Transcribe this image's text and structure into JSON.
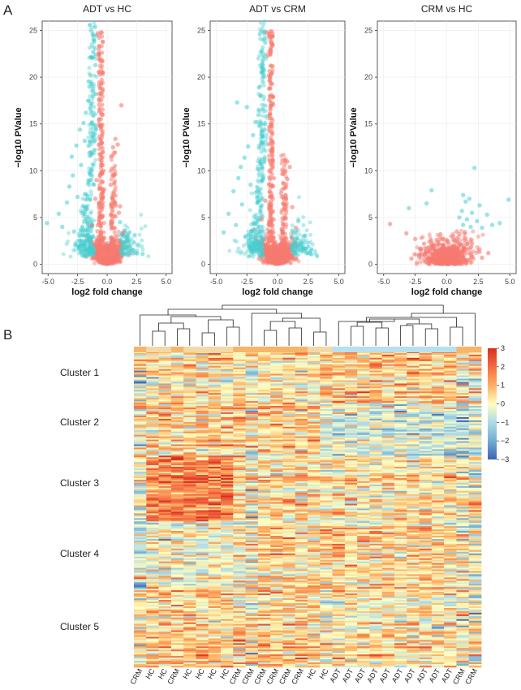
{
  "panel_a_label": "A",
  "panel_b_label": "B",
  "chart_data": [
    {
      "type": "scatter",
      "title": "ADT vs HC",
      "xlabel": "log2 fold change",
      "ylabel": "−log10 PValue",
      "xlim": [
        -5.5,
        5.5
      ],
      "ylim": [
        -1,
        26
      ],
      "xticks": [
        -5.0,
        -2.5,
        0.0,
        2.5,
        5.0
      ],
      "yticks": [
        0,
        5,
        10,
        15,
        20,
        25
      ],
      "grid": true,
      "series": [
        {
          "color": "#48cdd0",
          "values": [
            [
              -1.2,
              24.6
            ],
            [
              -1.1,
              23.8
            ],
            [
              -1.3,
              22.1
            ],
            [
              -1.0,
              21.3
            ],
            [
              -1.4,
              20.2
            ],
            [
              -1.5,
              19.0
            ],
            [
              -1.6,
              17.5
            ],
            [
              -1.8,
              16.2
            ],
            [
              -2.0,
              15.1
            ],
            [
              -2.3,
              14.4
            ],
            [
              -1.9,
              13.2
            ],
            [
              -2.6,
              12.7
            ],
            [
              -3.0,
              11.5
            ],
            [
              -2.2,
              10.6
            ],
            [
              -2.9,
              9.5
            ],
            [
              -3.2,
              8.3
            ],
            [
              -2.5,
              7.2
            ],
            [
              -3.4,
              6.6
            ],
            [
              -1.7,
              5.9
            ],
            [
              -4.1,
              5.4
            ],
            [
              -5.1,
              4.4
            ],
            [
              -3.8,
              4.0
            ],
            [
              -2.8,
              3.5
            ],
            [
              -2.0,
              3.1
            ],
            [
              -1.5,
              2.6
            ],
            [
              1.6,
              2.4
            ],
            [
              1.9,
              1.9
            ],
            [
              2.2,
              1.5
            ],
            [
              2.5,
              1.2
            ],
            [
              1.3,
              3.2
            ],
            [
              1.1,
              4.5
            ],
            [
              1.5,
              2.9
            ],
            [
              3.0,
              1.1
            ]
          ]
        },
        {
          "color": "#f77b70",
          "values": [
            [
              -0.8,
              24.7
            ],
            [
              -0.7,
              22.6
            ],
            [
              -0.6,
              20.3
            ],
            [
              -0.5,
              18.2
            ],
            [
              -0.45,
              16.0
            ],
            [
              -0.4,
              14.0
            ],
            [
              -0.35,
              12.0
            ],
            [
              -0.3,
              10.0
            ],
            [
              -0.25,
              8.0
            ],
            [
              0.3,
              8.5
            ],
            [
              0.4,
              10.2
            ],
            [
              0.5,
              12.5
            ],
            [
              0.7,
              13.4
            ],
            [
              0.9,
              12.8
            ],
            [
              1.2,
              17.0
            ],
            [
              -0.9,
              9.0
            ],
            [
              -1.0,
              7.0
            ],
            [
              1.1,
              6.2
            ],
            [
              1.0,
              5.5
            ],
            [
              -1.3,
              4.2
            ],
            [
              1.4,
              3.4
            ],
            [
              -0.2,
              2.2
            ],
            [
              0.2,
              2.0
            ],
            [
              0.0,
              0.6
            ],
            [
              -0.6,
              0.8
            ],
            [
              0.6,
              0.9
            ],
            [
              -1.2,
              0.7
            ],
            [
              1.2,
              0.7
            ]
          ]
        }
      ]
    },
    {
      "type": "scatter",
      "title": "ADT vs CRM",
      "xlabel": "log2 fold change",
      "ylabel": "−log10 PValue",
      "xlim": [
        -5.5,
        5.5
      ],
      "ylim": [
        -1,
        26
      ],
      "xticks": [
        -5.0,
        -2.5,
        0.0,
        2.5,
        5.0
      ],
      "yticks": [
        0,
        5,
        10,
        15,
        20,
        25
      ],
      "grid": true,
      "series": [
        {
          "color": "#48cdd0",
          "values": [
            [
              -1.1,
              24.8
            ],
            [
              -1.0,
              23.7
            ],
            [
              -1.2,
              22.4
            ],
            [
              -1.3,
              21.0
            ],
            [
              -1.2,
              19.5
            ],
            [
              -1.4,
              18.0
            ],
            [
              -1.5,
              16.4
            ],
            [
              -2.5,
              16.8
            ],
            [
              -3.3,
              17.3
            ],
            [
              -1.8,
              15.2
            ],
            [
              -2.0,
              13.8
            ],
            [
              -2.4,
              12.6
            ],
            [
              -2.7,
              11.4
            ],
            [
              -3.0,
              10.4
            ],
            [
              -3.2,
              9.2
            ],
            [
              -2.2,
              8.5
            ],
            [
              -3.6,
              7.8
            ],
            [
              -2.9,
              6.4
            ],
            [
              -4.0,
              5.4
            ],
            [
              -1.9,
              5.1
            ],
            [
              -3.4,
              4.2
            ],
            [
              -4.4,
              3.4
            ],
            [
              -2.6,
              3.0
            ],
            [
              -1.8,
              2.6
            ],
            [
              1.5,
              2.7
            ],
            [
              1.9,
              2.1
            ],
            [
              2.3,
              1.6
            ],
            [
              1.2,
              3.6
            ],
            [
              1.7,
              4.6
            ],
            [
              2.7,
              1.1
            ]
          ]
        },
        {
          "color": "#f77b70",
          "values": [
            [
              -0.9,
              24.8
            ],
            [
              -0.8,
              22.3
            ],
            [
              -0.7,
              20.2
            ],
            [
              -0.6,
              17.9
            ],
            [
              -0.5,
              15.6
            ],
            [
              -0.45,
              13.2
            ],
            [
              -0.4,
              11.1
            ],
            [
              -0.3,
              9.2
            ],
            [
              0.3,
              7.6
            ],
            [
              0.5,
              8.6
            ],
            [
              0.8,
              9.1
            ],
            [
              0.8,
              11.0
            ],
            [
              1.0,
              10.4
            ],
            [
              -1.0,
              6.8
            ],
            [
              1.2,
              6.1
            ],
            [
              -1.3,
              4.8
            ],
            [
              1.5,
              3.9
            ],
            [
              -0.2,
              2.4
            ],
            [
              0.2,
              2.1
            ],
            [
              0.0,
              0.6
            ],
            [
              -0.8,
              0.9
            ],
            [
              0.8,
              0.9
            ],
            [
              -1.5,
              0.6
            ],
            [
              1.5,
              0.6
            ]
          ]
        }
      ]
    },
    {
      "type": "scatter",
      "title": "CRM vs HC",
      "xlabel": "log2 fold change",
      "ylabel": "−log10 PValue",
      "xlim": [
        -5.5,
        5.5
      ],
      "ylim": [
        -1,
        26
      ],
      "xticks": [
        -5.0,
        -2.5,
        0.0,
        2.5,
        5.0
      ],
      "yticks": [
        0,
        5,
        10,
        15,
        20,
        25
      ],
      "grid": true,
      "series": [
        {
          "color": "#48cdd0",
          "values": [
            [
              2.2,
              10.3
            ],
            [
              -1.2,
              7.9
            ],
            [
              1.3,
              7.4
            ],
            [
              1.8,
              7.0
            ],
            [
              4.9,
              6.9
            ],
            [
              1.5,
              6.7
            ],
            [
              -1.6,
              6.5
            ],
            [
              2.6,
              6.3
            ],
            [
              -3.0,
              6.0
            ],
            [
              1.2,
              5.7
            ],
            [
              2.0,
              5.5
            ],
            [
              3.2,
              5.3
            ],
            [
              1.0,
              5.0
            ],
            [
              1.6,
              4.8
            ],
            [
              2.4,
              4.6
            ],
            [
              4.2,
              4.4
            ],
            [
              3.6,
              4.2
            ],
            [
              2.8,
              3.9
            ],
            [
              1.3,
              4.2
            ],
            [
              1.9,
              4.0
            ]
          ]
        },
        {
          "color": "#f77b70",
          "values": [
            [
              -4.5,
              4.3
            ],
            [
              -3.2,
              3.3
            ],
            [
              -2.5,
              2.7
            ],
            [
              -1.8,
              2.2
            ],
            [
              -2.1,
              1.6
            ],
            [
              -1.2,
              1.8
            ],
            [
              -0.8,
              2.6
            ],
            [
              -0.5,
              3.2
            ],
            [
              0.0,
              2.6
            ],
            [
              0.5,
              3.0
            ],
            [
              0.8,
              3.5
            ],
            [
              1.0,
              3.2
            ],
            [
              1.4,
              2.6
            ],
            [
              2.0,
              2.2
            ],
            [
              2.6,
              1.6
            ],
            [
              3.3,
              1.2
            ],
            [
              -0.2,
              1.1
            ],
            [
              0.2,
              1.0
            ],
            [
              0.0,
              0.5
            ],
            [
              -1.0,
              0.9
            ],
            [
              1.0,
              0.8
            ],
            [
              -2.8,
              0.6
            ],
            [
              2.8,
              0.7
            ]
          ]
        }
      ]
    },
    {
      "type": "heatmap",
      "colorbar_ticks": [
        3,
        2,
        1,
        0,
        -1,
        -2,
        -3
      ],
      "colorbar_range": [
        -3,
        3
      ],
      "colors": {
        "low": "#3b63b8",
        "mid": "#ffffbf",
        "high": "#d7301f",
        "annot_orange": "#f7b56a",
        "annot_blue": "#b8e0ee"
      },
      "row_clusters": [
        "Cluster 1",
        "Cluster 2",
        "Cluster 3",
        "Cluster 4",
        "Cluster 5"
      ],
      "column_labels": [
        "CRM",
        "HC",
        "HC",
        "CRM",
        "HC",
        "HC",
        "HC",
        "HC",
        "CRM",
        "CRM",
        "CRM",
        "CRM",
        "CRM",
        "CRM",
        "HC",
        "HC",
        "ADT",
        "ADT",
        "ADT",
        "ADT",
        "ADT",
        "ADT",
        "ADT",
        "ADT",
        "ADT",
        "ADT",
        "CRM",
        "CRM"
      ]
    }
  ]
}
